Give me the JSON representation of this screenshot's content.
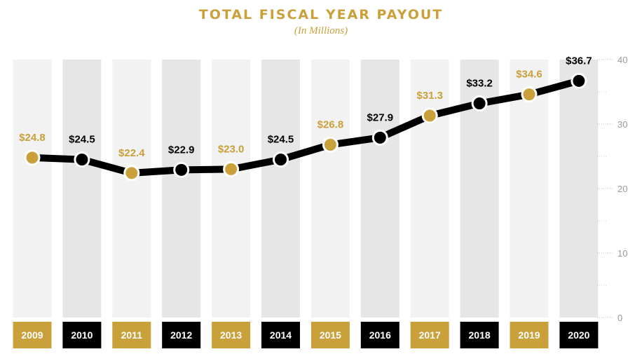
{
  "header": {
    "title": "TOTAL FISCAL YEAR PAYOUT",
    "subtitle": "(In Millions)"
  },
  "colors": {
    "gold": "#C9A03A",
    "black": "#000000",
    "stripe_light": "#F2F2F2",
    "stripe_dark": "#E6E6E6",
    "axis_text": "#9A9A9A"
  },
  "chart_data": {
    "type": "line",
    "title": "TOTAL FISCAL YEAR PAYOUT",
    "subtitle": "(In Millions)",
    "categories": [
      "2009",
      "2010",
      "2011",
      "2012",
      "2013",
      "2014",
      "2015",
      "2016",
      "2017",
      "2018",
      "2019",
      "2020"
    ],
    "values": [
      24.8,
      24.5,
      22.4,
      22.9,
      23.0,
      24.5,
      26.8,
      27.9,
      31.3,
      33.2,
      34.6,
      36.7
    ],
    "data_labels": [
      "$24.8",
      "$24.5",
      "$22.4",
      "$22.9",
      "$23.0",
      "$24.5",
      "$26.8",
      "$27.9",
      "$31.3",
      "$33.2",
      "$34.6",
      "$36.7"
    ],
    "ylim": [
      0,
      40
    ],
    "y_ticks": [
      "0",
      "10",
      "20",
      "30",
      "40"
    ],
    "y_axis_side": "right",
    "grid": true,
    "legend": "none"
  }
}
